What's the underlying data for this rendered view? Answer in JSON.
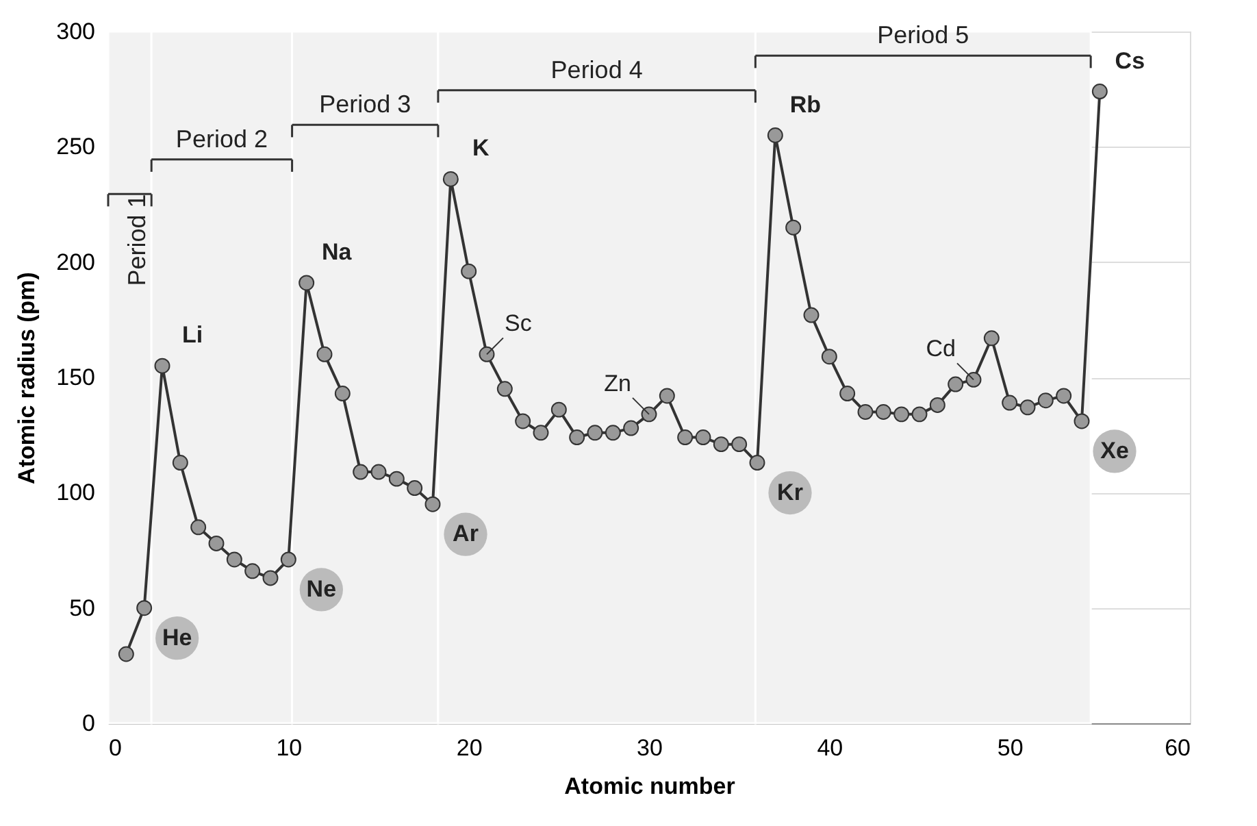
{
  "chart_data": {
    "type": "line",
    "xlabel": "Atomic number",
    "ylabel": "Atomic radius (pm)",
    "x": [
      1,
      2,
      3,
      4,
      5,
      6,
      7,
      8,
      9,
      10,
      11,
      12,
      13,
      14,
      15,
      16,
      17,
      18,
      19,
      20,
      21,
      22,
      23,
      24,
      25,
      26,
      27,
      28,
      29,
      30,
      31,
      32,
      33,
      34,
      35,
      36,
      37,
      38,
      39,
      40,
      41,
      42,
      43,
      44,
      45,
      46,
      47,
      48,
      49,
      50,
      51,
      52,
      53,
      54,
      55
    ],
    "series": [
      {
        "color": "#333333",
        "values": [
          30,
          50,
          155,
          113,
          85,
          78,
          71,
          66,
          63,
          71,
          191,
          160,
          143,
          109,
          109,
          106,
          102,
          95,
          236,
          196,
          160,
          145,
          131,
          126,
          136,
          124,
          126,
          126,
          128,
          134,
          142,
          124,
          124,
          121,
          121,
          113,
          255,
          215,
          177,
          159,
          143,
          135,
          135,
          134,
          134,
          138,
          147,
          149,
          167,
          139,
          137,
          140,
          142,
          131,
          274
        ]
      }
    ],
    "marker": "circle",
    "line_style": "solid",
    "xlim": [
      0,
      60
    ],
    "xticks": [
      0,
      10,
      20,
      30,
      40,
      50,
      60
    ],
    "ylim": [
      0,
      300
    ],
    "yticks": [
      0,
      50,
      100,
      150,
      200,
      250,
      300
    ],
    "grid": true,
    "bands": [
      {
        "axis": "x",
        "from": 0,
        "to": 2.4,
        "label": "Period 1"
      },
      {
        "axis": "x",
        "from": 2.4,
        "to": 10.2,
        "label": "Period 2"
      },
      {
        "axis": "x",
        "from": 10.2,
        "to": 18.3,
        "label": "Period 3"
      },
      {
        "axis": "x",
        "from": 18.3,
        "to": 35.9,
        "label": "Period 4"
      },
      {
        "axis": "x",
        "from": 35.9,
        "to": 54.5,
        "label": "Period 5"
      }
    ],
    "annotations": [
      {
        "text": "He",
        "x": 2,
        "y": 50
      },
      {
        "text": "Li",
        "x": 3,
        "y": 155
      },
      {
        "text": "Ne",
        "x": 10,
        "y": 71
      },
      {
        "text": "Na",
        "x": 11,
        "y": 191
      },
      {
        "text": "Ar",
        "x": 18,
        "y": 95
      },
      {
        "text": "K",
        "x": 19,
        "y": 236
      },
      {
        "text": "Sc",
        "x": 21,
        "y": 160
      },
      {
        "text": "Zn",
        "x": 30,
        "y": 134
      },
      {
        "text": "Kr",
        "x": 36,
        "y": 113
      },
      {
        "text": "Rb",
        "x": 37,
        "y": 255
      },
      {
        "text": "Cd",
        "x": 48,
        "y": 149
      },
      {
        "text": "Xe",
        "x": 54,
        "y": 131
      },
      {
        "text": "Cs",
        "x": 55,
        "y": 274
      }
    ]
  }
}
